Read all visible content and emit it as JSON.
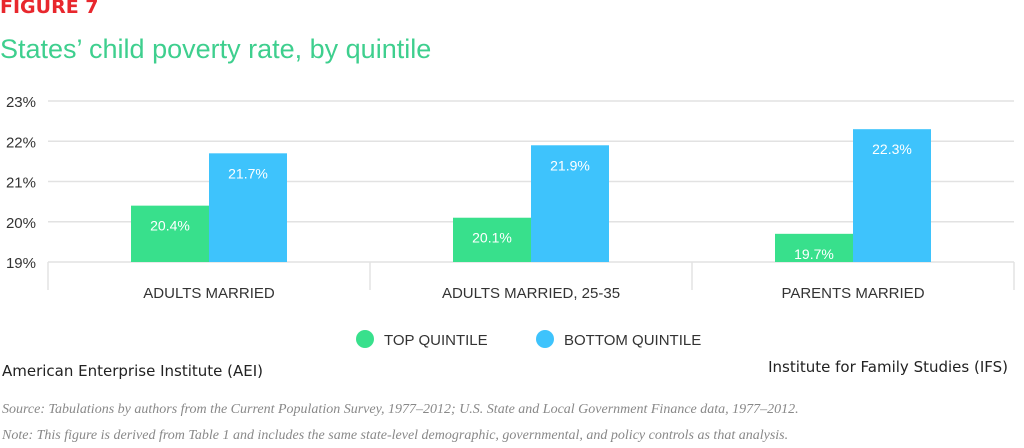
{
  "figure_label": "FIGURE 7",
  "title": "States’ child poverty rate, by quintile",
  "chart_data": {
    "type": "bar",
    "title": "States’ child poverty rate, by quintile",
    "categories": [
      "ADULTS MARRIED",
      "ADULTS MARRIED, 25-35",
      "PARENTS MARRIED"
    ],
    "series": [
      {
        "name": "TOP QUINTILE",
        "values": [
          20.4,
          20.1,
          19.7
        ],
        "labels": [
          "20.4%",
          "20.1%",
          "19.7%"
        ],
        "color": "#38e08c"
      },
      {
        "name": "BOTTOM QUINTILE",
        "values": [
          21.7,
          21.9,
          22.3
        ],
        "labels": [
          "21.7%",
          "21.9%",
          "22.3%"
        ],
        "color": "#3ec3fc"
      }
    ],
    "ylim": [
      19,
      23
    ],
    "yticks": [
      19,
      20,
      21,
      22,
      23
    ],
    "ytick_labels": [
      "19%",
      "20%",
      "21%",
      "22%",
      "23%"
    ],
    "grid": true,
    "legend": "bottom-center"
  },
  "left_label": "American Enterprise Institute (AEI)",
  "right_label": "Institute for Family Studies (IFS)",
  "source": "Source: Tabulations by authors from the Current Population Survey, 1977–2012; U.S. State and Local Government Finance data, 1977–2012.",
  "note": "Note: This figure is derived from Table 1 and includes the same state-level demographic, governmental, and policy controls as that analysis."
}
